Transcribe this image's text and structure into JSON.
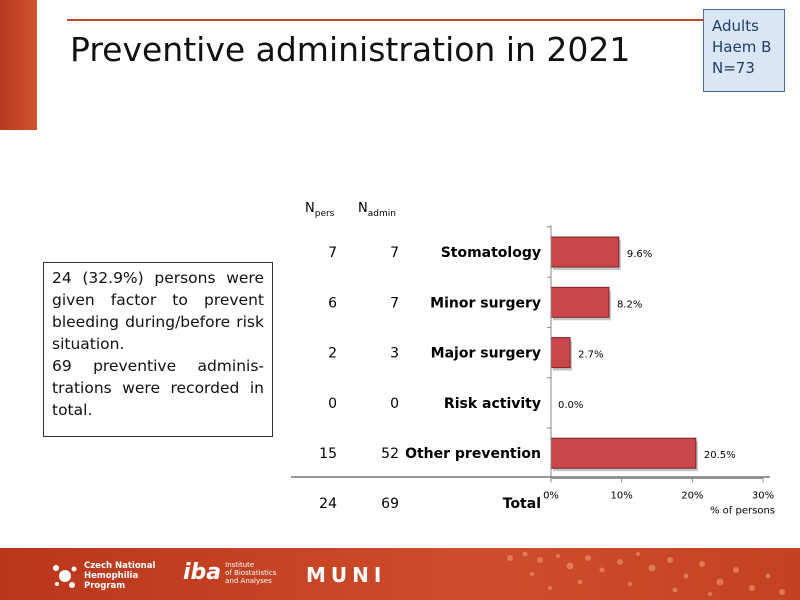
{
  "slide": {
    "title": "Preventive administration in 2021",
    "info_box": [
      "Adults",
      "Haem B",
      "N=73"
    ],
    "summary": [
      "24 (32.9%) persons were given factor to prevent bleeding during/before risk situation.",
      "69 preventive adminis-trations were recorded in total."
    ]
  },
  "table": {
    "col_pers_main": "N",
    "col_pers_sub": "pers",
    "col_admin_main": "N",
    "col_admin_sub": "admin",
    "rows": [
      {
        "label": "Stomatology",
        "n_pers": "7",
        "n_admin": "7"
      },
      {
        "label": "Minor surgery",
        "n_pers": "6",
        "n_admin": "7"
      },
      {
        "label": "Major surgery",
        "n_pers": "2",
        "n_admin": "3"
      },
      {
        "label": "Risk activity",
        "n_pers": "0",
        "n_admin": "0"
      },
      {
        "label": "Other prevention",
        "n_pers": "15",
        "n_admin": "52"
      }
    ],
    "total": {
      "label": "Total",
      "n_pers": "24",
      "n_admin": "69"
    }
  },
  "chart_data": {
    "type": "bar",
    "orientation": "horizontal",
    "categories": [
      "Stomatology",
      "Minor surgery",
      "Major surgery",
      "Risk activity",
      "Other prevention"
    ],
    "values": [
      9.6,
      8.2,
      2.7,
      0.0,
      20.5
    ],
    "value_labels": [
      "9.6%",
      "8.2%",
      "2.7%",
      "0.0%",
      "20.5%"
    ],
    "xlabel": "% of persons",
    "xlim": [
      0,
      30
    ],
    "xticks": [
      0,
      10,
      20,
      30
    ],
    "xtick_labels": [
      "0%",
      "10%",
      "20%",
      "30%"
    ],
    "bar_color": "#c9474b",
    "grid": false
  },
  "footer": {
    "chp_lines": [
      "Czech National",
      "Hemophilia",
      "Program"
    ],
    "iba_mark": "iba",
    "iba_lines": [
      "Institute",
      "of Biostatistics",
      "and Analyses"
    ],
    "muni": "MUNI"
  },
  "colors": {
    "accent": "#c0472b",
    "info_box_bg": "#dbe6f5",
    "info_box_border": "#4a6fa5",
    "footer": "#c4421f"
  }
}
